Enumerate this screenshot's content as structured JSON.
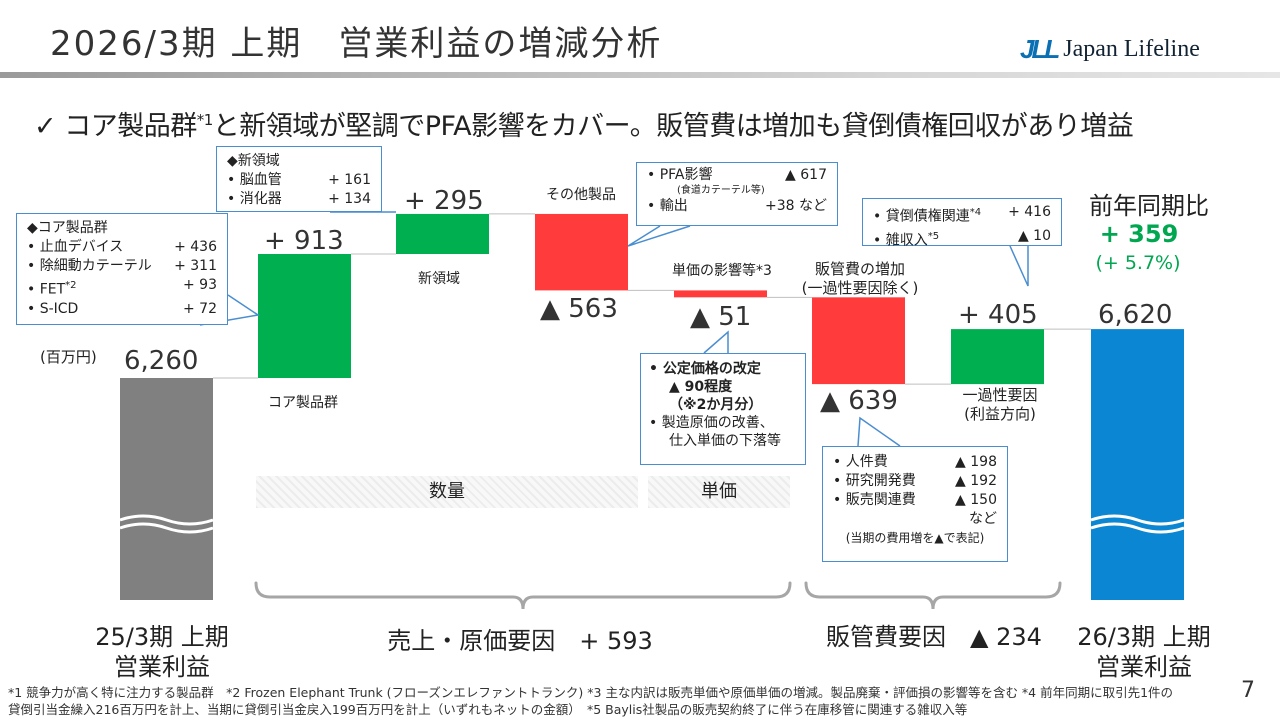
{
  "page": {
    "title": "2026/3期 上期　営業利益の増減分析",
    "logo_mark": "JLL",
    "logo_text": "Japan Lifeline",
    "headline_part1": "✓ コア製品群",
    "headline_sup": "*1",
    "headline_part2": "と新領域が堅調でPFA影響をカバー。販管費は増加も貸倒債権回収があり増益",
    "page_number": "7"
  },
  "chart_data": {
    "type": "bar",
    "subtype": "waterfall",
    "unit_label": "(百万円)",
    "categories": [
      "25/3期 上期 営業利益",
      "コア製品群",
      "新領域",
      "その他製品",
      "単価の影響等*3",
      "販管費の増加（一過性要因除く）",
      "一過性要因（利益方向）",
      "26/3期 上期 営業利益"
    ],
    "values": [
      6260,
      913,
      295,
      -563,
      -51,
      -639,
      405,
      6620
    ],
    "value_labels": [
      "6,260",
      "+ 913",
      "+ 295",
      "▲ 563",
      "▲ 51",
      "▲ 639",
      "+ 405",
      "6,620"
    ],
    "kinds": [
      "total",
      "increase",
      "increase",
      "decrease",
      "decrease",
      "decrease",
      "increase",
      "total"
    ],
    "colors": {
      "total_start": "#808080",
      "total_end": "#0a86d2",
      "increase": "#00b050",
      "decrease": "#ff3b3b",
      "connector": "#bfbfbf",
      "callout_border": "#4a8ed0",
      "yoy": "#00a650"
    },
    "axis_broken": true
  },
  "labels": {
    "core": "コア製品群",
    "new_area": "新領域",
    "other": "その他製品",
    "price": "単価の影響等*3",
    "sga_line1": "販管費の増加",
    "sga_line2": "(一過性要因除く)",
    "onetime_line1": "一過性要因",
    "onetime_line2": "(利益方向)",
    "start_line1": "25/3期 上期",
    "start_line2": "営業利益",
    "end_line1": "26/3期 上期",
    "end_line2": "営業利益",
    "yoy_title": "前年同期比",
    "yoy_value": "+ 359",
    "yoy_pct": "(+ 5.7%)"
  },
  "sections": {
    "volume": "数量",
    "unit_price": "単価",
    "sales_cost": "売上・原価要因　+ 593",
    "sga": "販管費要因　▲ 234"
  },
  "callouts": {
    "core": {
      "head": "◆コア製品群",
      "items": [
        {
          "name": "止血デバイス",
          "value": "+ 436"
        },
        {
          "name": "除細動カテーテル",
          "value": "+ 311"
        },
        {
          "name": "FET",
          "sup": "*2",
          "value": "+ 93"
        },
        {
          "name": "S-ICD",
          "value": "+ 72"
        }
      ]
    },
    "new_area": {
      "head": "◆新領域",
      "items": [
        {
          "name": "脳血管",
          "value": "+ 161"
        },
        {
          "name": "消化器",
          "value": "+ 134"
        }
      ]
    },
    "other": {
      "items": [
        {
          "name": "PFA影響",
          "value": "▲ 617"
        },
        {
          "name": "輸出",
          "value": "+38 など"
        }
      ],
      "note": "(食道カテーテル等)"
    },
    "price": {
      "item1_line1": "公定価格の改定",
      "item1_line2": "▲ 90程度",
      "item1_line3": "（※2か月分）",
      "item2_line1": "製造原価の改善、",
      "item2_line2": "仕入単価の下落等"
    },
    "sga": {
      "items": [
        {
          "name": "人件費",
          "value": "▲ 198"
        },
        {
          "name": "研究開発費",
          "value": "▲ 192"
        },
        {
          "name": "販売関連費",
          "value": "▲ 150"
        }
      ],
      "etc": "など",
      "note": "(当期の費用増を▲で表記)"
    },
    "onetime": {
      "items": [
        {
          "name": "貸倒債権関連",
          "sup": "*4",
          "value": "+ 416"
        },
        {
          "name": "雑収入",
          "sup": "*5",
          "value": "▲ 10"
        }
      ]
    }
  },
  "footnotes": {
    "line1": "*1 競争力が高く特に注力する製品群　*2 Frozen Elephant Trunk (フローズンエレファントトランク) *3 主な内訳は販売単価や原価単価の増減。製品廃棄・評価損の影響等を含む *4 前年同期に取引先1件の",
    "line2": "貸倒引当金繰入216百万円を計上、当期に貸倒引当金戻入199百万円を計上（いずれもネットの金額）　*5 Baylis社製品の販売契約終了に伴う在庫移管に関連する雑収入等"
  }
}
